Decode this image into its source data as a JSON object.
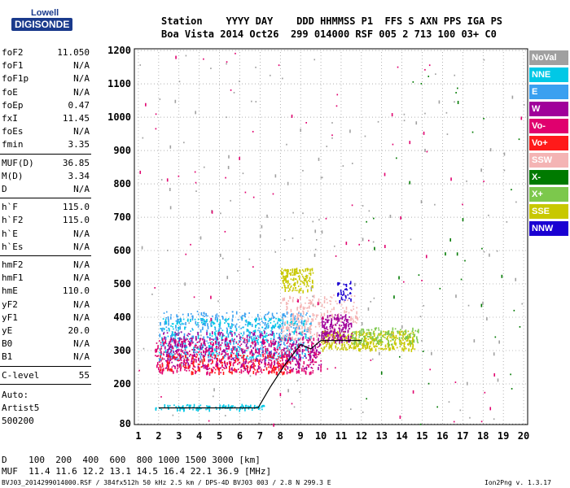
{
  "logo": {
    "line1": "Lowell",
    "line2": "DIGISONDE"
  },
  "header": {
    "row1": "Station    YYYY DAY    DDD HHMMSS P1  FFS S AXN PPS IGA PS",
    "row2": "Boa Vista 2014 Oct26  299 014000 RSF 005 2 713 100 03+ C0"
  },
  "params_group1": [
    {
      "name": "foF2",
      "value": "11.050"
    },
    {
      "name": "foF1",
      "value": "N/A"
    },
    {
      "name": "foF1p",
      "value": "N/A"
    },
    {
      "name": "foE",
      "value": "N/A"
    },
    {
      "name": "foEp",
      "value": "0.47"
    },
    {
      "name": "fxI",
      "value": "11.45"
    },
    {
      "name": "foEs",
      "value": "N/A"
    },
    {
      "name": "fmin",
      "value": "3.35"
    }
  ],
  "params_group2": [
    {
      "name": "MUF(D)",
      "value": "36.85"
    },
    {
      "name": "M(D)",
      "value": "3.34"
    },
    {
      "name": "D",
      "value": "N/A"
    }
  ],
  "params_group3": [
    {
      "name": "h`F",
      "value": "115.0"
    },
    {
      "name": "h`F2",
      "value": "115.0"
    },
    {
      "name": "h`E",
      "value": "N/A"
    },
    {
      "name": "h`Es",
      "value": "N/A"
    }
  ],
  "params_group4": [
    {
      "name": "hmF2",
      "value": "N/A"
    },
    {
      "name": "hmF1",
      "value": "N/A"
    },
    {
      "name": "hmE",
      "value": "110.0"
    },
    {
      "name": "yF2",
      "value": "N/A"
    },
    {
      "name": "yF1",
      "value": "N/A"
    },
    {
      "name": "yE",
      "value": "20.0"
    },
    {
      "name": "B0",
      "value": "N/A"
    },
    {
      "name": "B1",
      "value": "N/A"
    }
  ],
  "params_group5": [
    {
      "name": "C-level",
      "value": "55"
    }
  ],
  "auto": {
    "line1": "Auto:",
    "line2": "Artist5",
    "line3": "500200"
  },
  "legend": [
    {
      "label": "NoVal",
      "color": "#a0a0a0"
    },
    {
      "label": "NNE",
      "color": "#00c8e6"
    },
    {
      "label": "E",
      "color": "#3aa0f0"
    },
    {
      "label": "W",
      "color": "#a0009a"
    },
    {
      "label": "Vo-",
      "color": "#e0006e"
    },
    {
      "label": "Vo+",
      "color": "#ff1a1a"
    },
    {
      "label": "SSW",
      "color": "#f4b4b4"
    },
    {
      "label": "X-",
      "color": "#007a00"
    },
    {
      "label": "X+",
      "color": "#7cc84c"
    },
    {
      "label": "SSE",
      "color": "#c8c800"
    },
    {
      "label": "NNW",
      "color": "#1a00d2"
    }
  ],
  "footer": {
    "d_row": "D    100  200  400  600  800 1000 1500 3000 [km]",
    "muf_row": "MUF  11.4 11.6 12.2 13.1 14.5 16.4 22.1 36.9 [MHz]",
    "info_row": "BVJ03_2014299014000.RSF / 384fx512h 50 kHz 2.5 km / DPS-4D BVJ03 003 / 2.8 N 299.3 E",
    "version": "Ion2Png v. 1.3.17"
  },
  "chart_data": {
    "type": "scatter",
    "x_ticks": [
      1,
      2,
      3,
      4,
      5,
      6,
      7,
      8,
      9,
      10,
      11,
      12,
      13,
      14,
      15,
      16,
      17,
      18,
      19,
      20
    ],
    "y_ticks": [
      80,
      200,
      300,
      400,
      500,
      600,
      700,
      800,
      900,
      1000,
      1100,
      1200
    ],
    "xlim": [
      0.8,
      20.2
    ],
    "ylim": [
      78,
      1205
    ],
    "grid": true,
    "trace": {
      "color": "#000000",
      "x": [
        2.0,
        3.0,
        4.0,
        5.0,
        6.0,
        6.9,
        7.5,
        8.2,
        9.0,
        9.5,
        10.0,
        11.0,
        12.0
      ],
      "y": [
        128,
        128,
        128,
        128,
        128,
        128,
        190,
        255,
        318,
        305,
        330,
        330,
        330
      ]
    },
    "clusters": [
      {
        "color": "#00c8e6",
        "x_range": [
          1.8,
          7.2
        ],
        "y_range": [
          125,
          140
        ],
        "count": 120
      },
      {
        "color": "#3aa0f0",
        "x_range": [
          2.0,
          9.5
        ],
        "y_range": [
          275,
          420
        ],
        "count": 500
      },
      {
        "color": "#00c8e6",
        "x_range": [
          2.0,
          9.5
        ],
        "y_range": [
          280,
          400
        ],
        "count": 350
      },
      {
        "color": "#e0006e",
        "x_range": [
          1.8,
          10.0
        ],
        "y_range": [
          235,
          340
        ],
        "count": 550
      },
      {
        "color": "#a0009a",
        "x_range": [
          2.2,
          10.0
        ],
        "y_range": [
          245,
          360
        ],
        "count": 350
      },
      {
        "color": "#ff1a1a",
        "x_range": [
          2.0,
          8.5
        ],
        "y_range": [
          235,
          290
        ],
        "count": 180
      },
      {
        "color": "#f4b4b4",
        "x_range": [
          8.0,
          11.8
        ],
        "y_range": [
          330,
          470
        ],
        "count": 260
      },
      {
        "color": "#c8c800",
        "x_range": [
          8.0,
          9.6
        ],
        "y_range": [
          480,
          550
        ],
        "count": 150
      },
      {
        "color": "#c8c800",
        "x_range": [
          10.0,
          14.6
        ],
        "y_range": [
          305,
          360
        ],
        "count": 350
      },
      {
        "color": "#7cc84c",
        "x_range": [
          11.5,
          14.8
        ],
        "y_range": [
          320,
          370
        ],
        "count": 120
      },
      {
        "color": "#a0009a",
        "x_range": [
          10.0,
          11.5
        ],
        "y_range": [
          330,
          410
        ],
        "count": 180
      },
      {
        "color": "#1a00d2",
        "x_range": [
          10.8,
          11.5
        ],
        "y_range": [
          450,
          510
        ],
        "count": 40
      },
      {
        "color": "#a0a0a0",
        "x_range": [
          1.0,
          20.0
        ],
        "y_range": [
          80,
          1200
        ],
        "count": 160
      },
      {
        "color": "#e0006e",
        "x_range": [
          1.0,
          20.0
        ],
        "y_range": [
          80,
          1200
        ],
        "count": 90
      },
      {
        "color": "#007a00",
        "x_range": [
          12.0,
          20.0
        ],
        "y_range": [
          80,
          1200
        ],
        "count": 40
      }
    ]
  }
}
